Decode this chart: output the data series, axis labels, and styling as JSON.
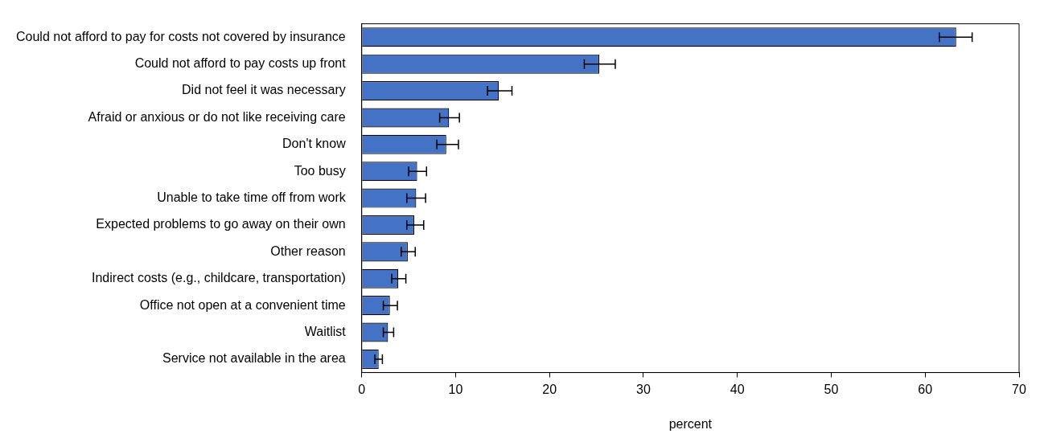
{
  "chart_data": {
    "type": "bar",
    "orientation": "horizontal",
    "xlabel": "percent",
    "categories": [
      "Could not afford to pay for costs not covered by insurance",
      "Could not afford to pay costs up front",
      "Did not feel it was necessary",
      "Afraid or anxious or do not like receiving care",
      "Don't know",
      "Too busy",
      "Unable to take time off from work",
      "Expected problems to go away on their own",
      "Other reason",
      "Indirect costs (e.g., childcare, transportation)",
      "Office not open at a convenient time",
      "Waitlist",
      "Service not available in the area"
    ],
    "values": [
      63.3,
      25.3,
      14.6,
      9.3,
      9.0,
      5.9,
      5.8,
      5.6,
      4.9,
      3.9,
      3.0,
      2.8,
      1.8
    ],
    "errors": [
      [
        61.5,
        65.0
      ],
      [
        23.7,
        27.0
      ],
      [
        13.4,
        16.0
      ],
      [
        8.3,
        10.4
      ],
      [
        8.0,
        10.3
      ],
      [
        5.0,
        6.9
      ],
      [
        4.8,
        6.8
      ],
      [
        4.8,
        6.6
      ],
      [
        4.2,
        5.7
      ],
      [
        3.2,
        4.7
      ],
      [
        2.3,
        3.8
      ],
      [
        2.3,
        3.4
      ],
      [
        1.4,
        2.2
      ]
    ],
    "color": "#4472c4",
    "xlim": [
      0,
      70
    ],
    "xticks": [
      0,
      10,
      20,
      30,
      40,
      50,
      60,
      70
    ],
    "grid": false,
    "legend": false
  }
}
